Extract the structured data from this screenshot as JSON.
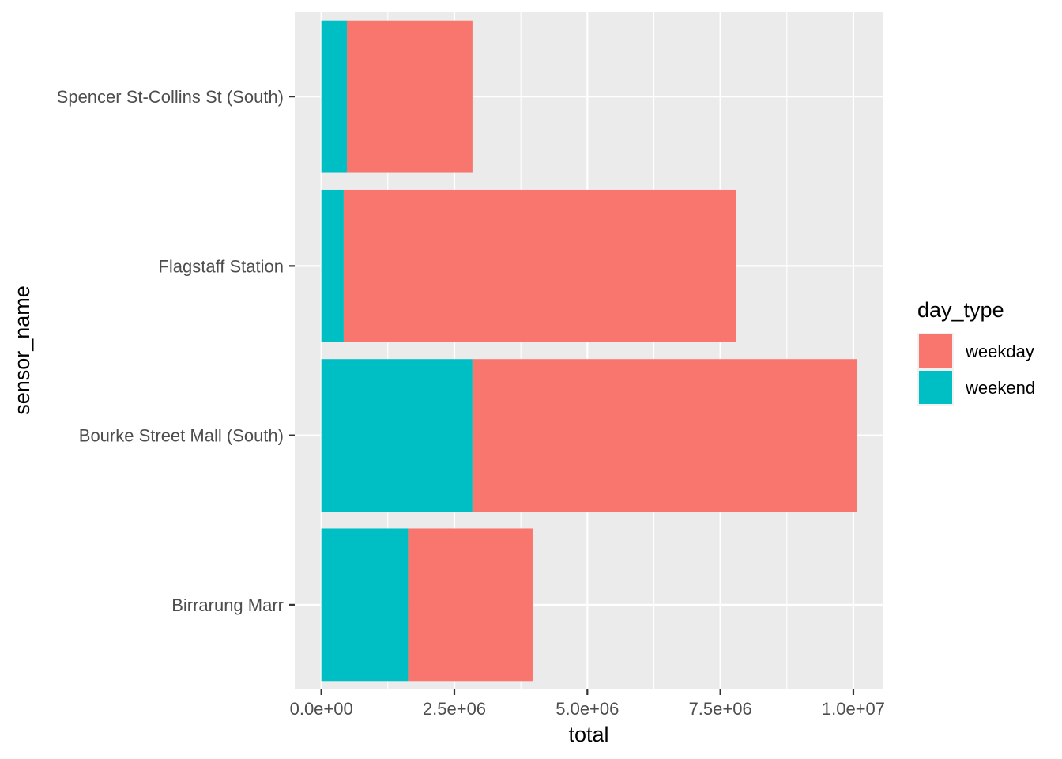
{
  "chart_data": {
    "type": "bar",
    "orientation": "horizontal",
    "stacked": true,
    "title": "",
    "xlabel": "total",
    "ylabel": "sensor_name",
    "categories": [
      "Spencer St-Collins St (South)",
      "Flagstaff Station",
      "Bourke Street Mall (South)",
      "Birrarung Marr"
    ],
    "series": [
      {
        "name": "weekend",
        "color": "#00BFC4",
        "values": [
          480000,
          420000,
          2840000,
          1630000
        ]
      },
      {
        "name": "weekday",
        "color": "#F8766D",
        "values": [
          2360000,
          7380000,
          7220000,
          2340000
        ]
      }
    ],
    "xlim": [
      -500000,
      10550000
    ],
    "x_ticks": [
      0,
      2500000,
      5000000,
      7500000,
      10000000
    ],
    "x_tick_labels": [
      "0.0e+00",
      "2.5e+06",
      "5.0e+06",
      "7.5e+06",
      "1.0e+07"
    ],
    "grid": true,
    "legend": {
      "title": "day_type",
      "position": "right",
      "entries": [
        {
          "label": "weekday",
          "color": "#F8766D"
        },
        {
          "label": "weekend",
          "color": "#00BFC4"
        }
      ]
    }
  }
}
